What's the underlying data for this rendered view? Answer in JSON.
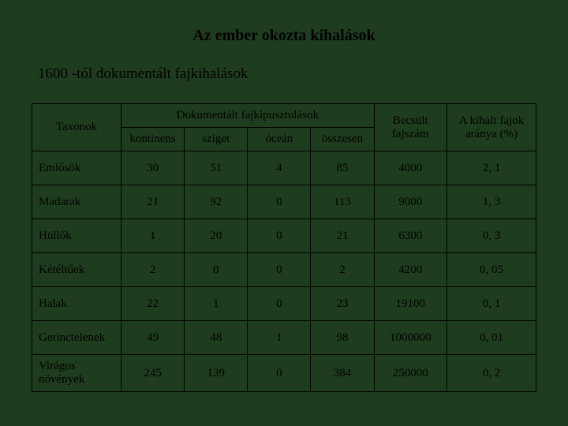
{
  "title": "Az ember okozta kihalások",
  "subtitle": "1600 -tól dokumentált fajkihalások",
  "table": {
    "headers": {
      "taxon": "Taxonok",
      "group": "Dokumentált fajkipusztulások",
      "sub": [
        "kontinens",
        "sziget",
        "óceán",
        "összesen"
      ],
      "est": "Becsült fajszám",
      "pct": "A kihalt fajok aránya (%)"
    },
    "rows": [
      {
        "taxon": "Emlősök",
        "v": [
          "30",
          "51",
          "4",
          "85"
        ],
        "est": "4000",
        "pct": "2, 1"
      },
      {
        "taxon": "Madarak",
        "v": [
          "21",
          "92",
          "0",
          "113"
        ],
        "est": "9000",
        "pct": "1, 3"
      },
      {
        "taxon": "Hüllők",
        "v": [
          "1",
          "20",
          "0",
          "21"
        ],
        "est": "6300",
        "pct": "0, 3"
      },
      {
        "taxon": "Kétéltűek",
        "v": [
          "2",
          "0",
          "0",
          "2"
        ],
        "est": "4200",
        "pct": "0, 05"
      },
      {
        "taxon": "Halak",
        "v": [
          "22",
          "1",
          "0",
          "23"
        ],
        "est": "19100",
        "pct": "0, 1"
      },
      {
        "taxon": "Gerinctelenek",
        "v": [
          "49",
          "48",
          "1",
          "98"
        ],
        "est": "1000000",
        "pct": "0, 01"
      },
      {
        "taxon": "Virágos növények",
        "v": [
          "245",
          "139",
          "0",
          "384"
        ],
        "est": "250000",
        "pct": "0, 2"
      }
    ]
  },
  "style": {
    "background": "#1e3d1e",
    "border_color": "#000000",
    "font_family": "Times New Roman",
    "title_fontsize": 20,
    "subtitle_fontsize": 19,
    "cell_fontsize": 15
  }
}
